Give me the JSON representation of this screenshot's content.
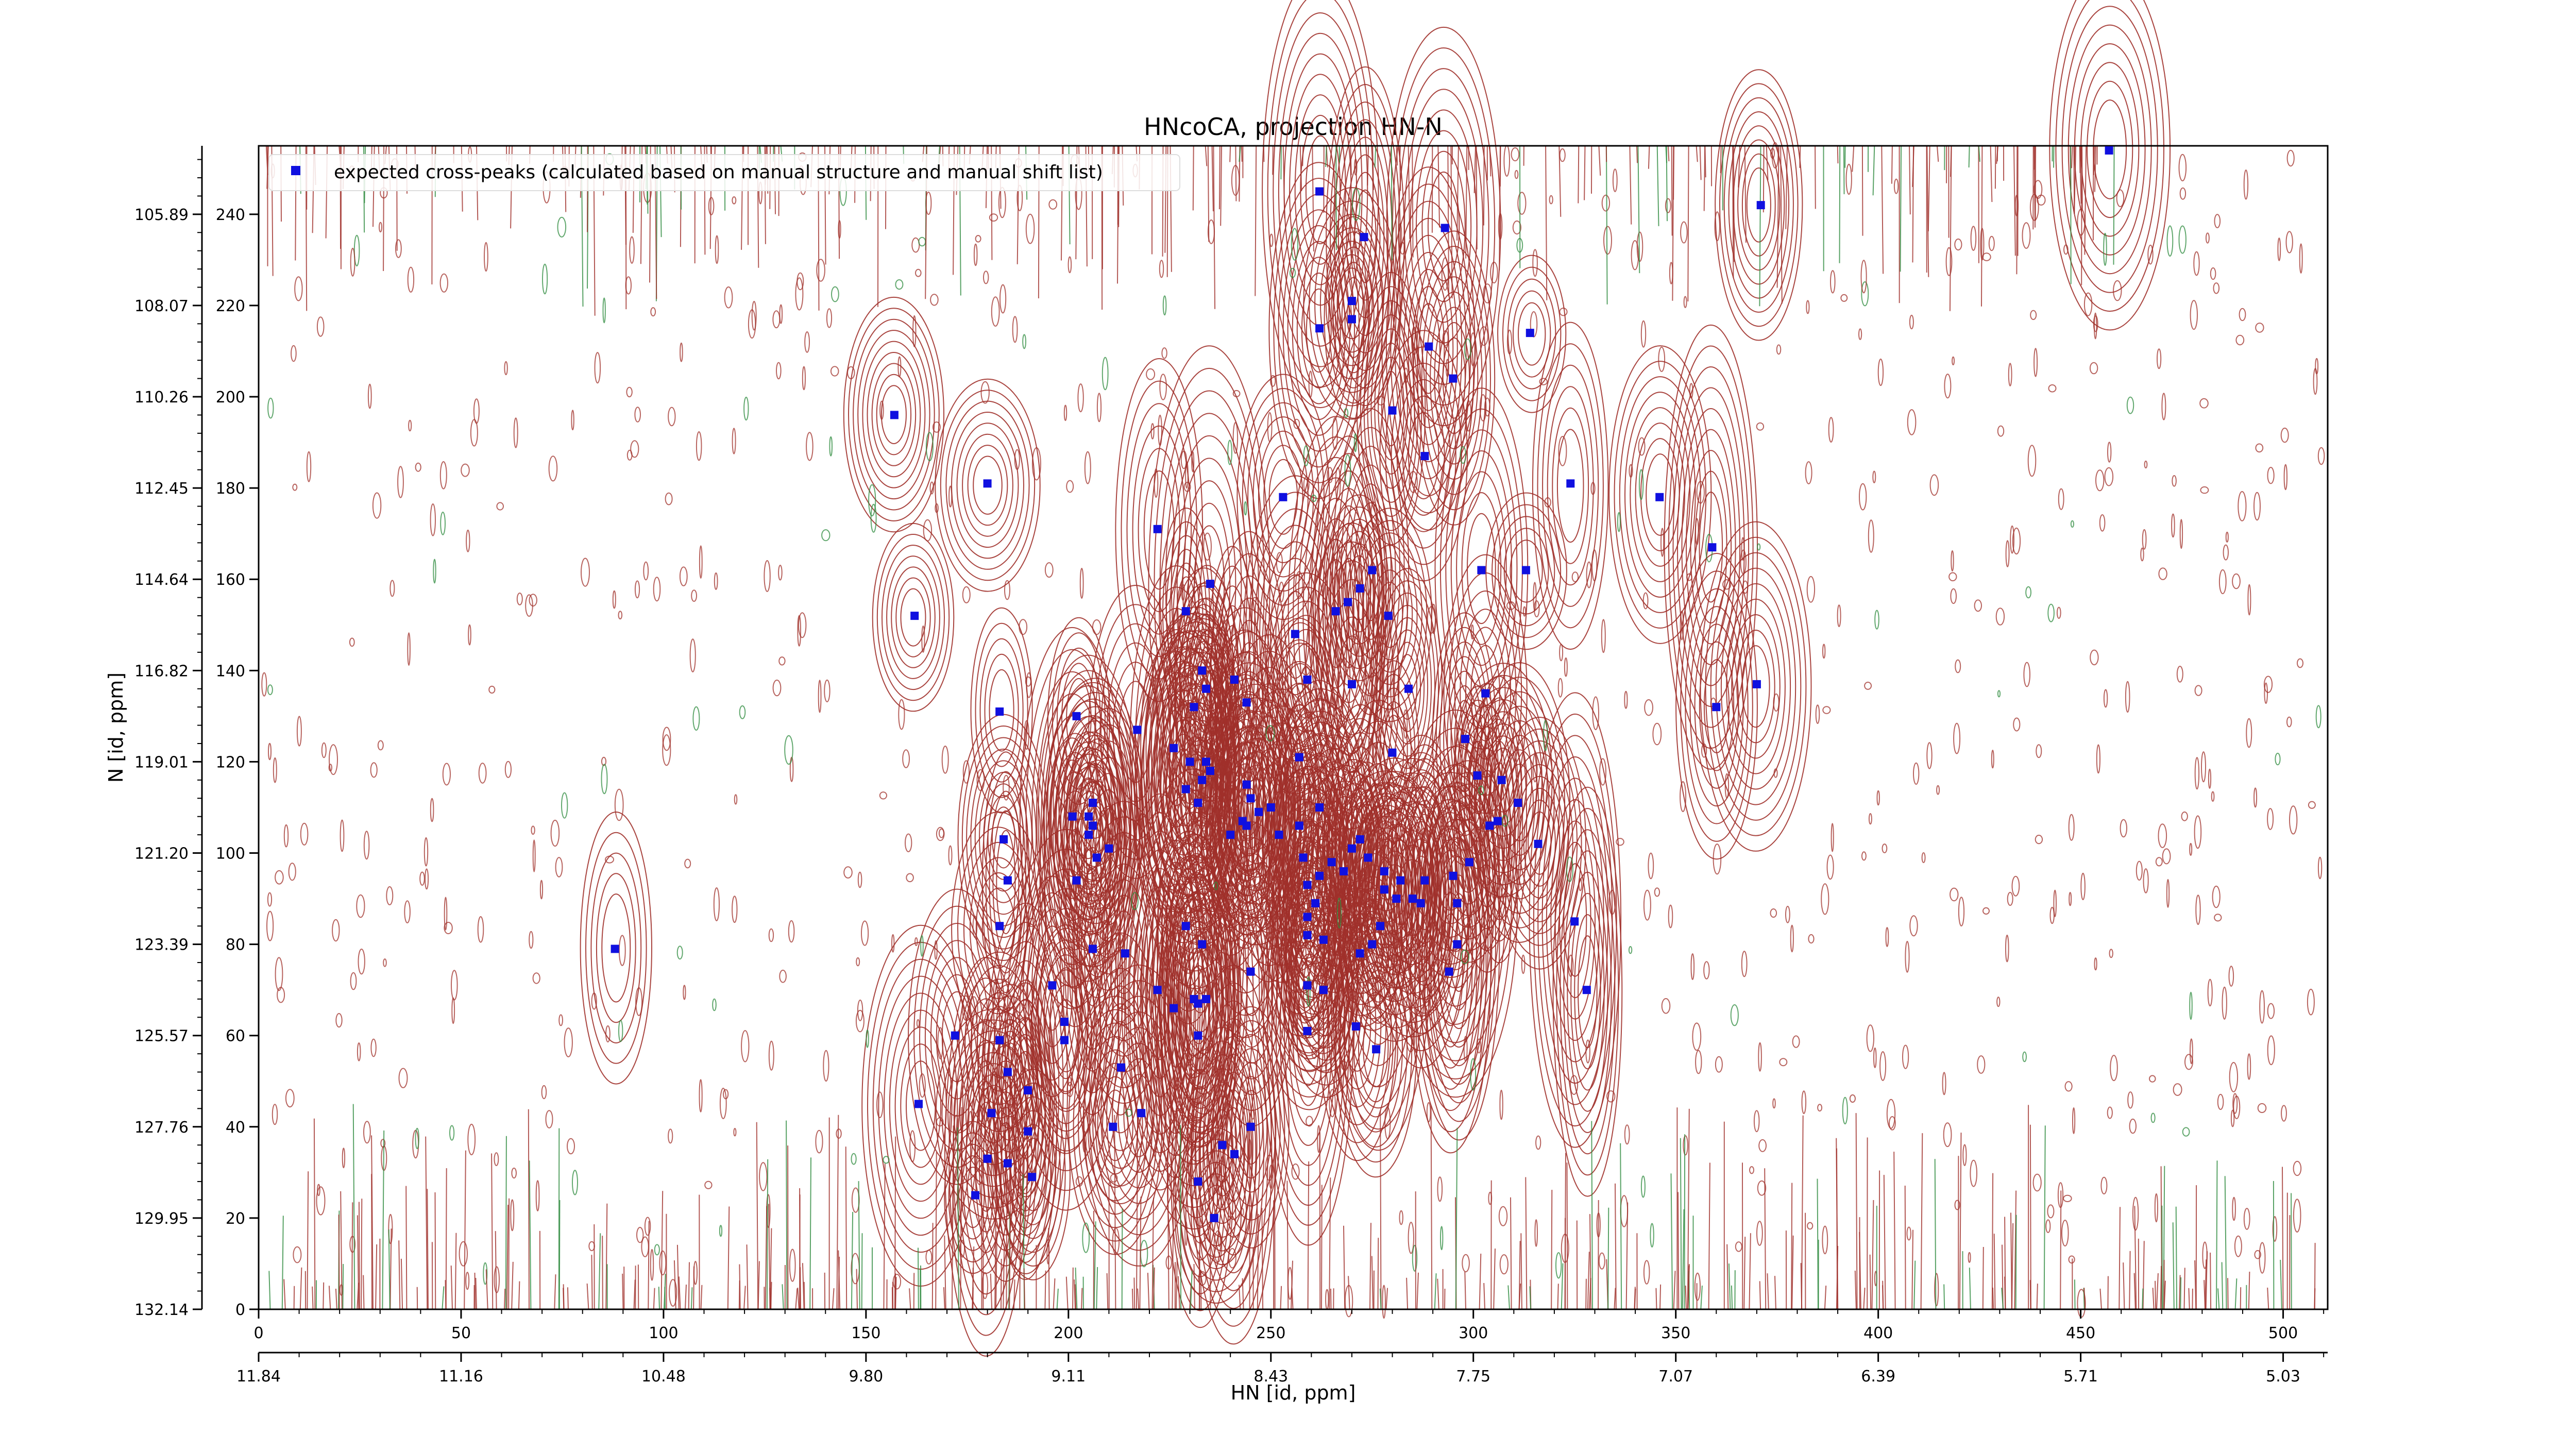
{
  "chart_data": {
    "type": "scatter",
    "title": "HNcoCA, projection HN-N",
    "xlabel": "HN [id, ppm]",
    "ylabel": "N [id, ppm]",
    "x_id_range": [
      0,
      511
    ],
    "y_id_range": [
      0,
      255
    ],
    "x_id_ticks": [
      "0",
      "50",
      "100",
      "150",
      "200",
      "250",
      "300",
      "350",
      "400",
      "450",
      "500"
    ],
    "x_id_tick_values": [
      0,
      50,
      100,
      150,
      200,
      250,
      300,
      350,
      400,
      450,
      500
    ],
    "x_ppm_ticks": [
      "11.84",
      "11.16",
      "10.48",
      "9.80",
      "9.11",
      "8.43",
      "7.75",
      "7.07",
      "6.39",
      "5.71",
      "5.03"
    ],
    "x_ppm_tick_values": [
      0,
      50,
      100,
      150,
      200,
      250,
      300,
      350,
      400,
      450,
      500
    ],
    "y_id_ticks": [
      "0",
      "20",
      "40",
      "60",
      "80",
      "100",
      "120",
      "140",
      "160",
      "180",
      "200",
      "220",
      "240"
    ],
    "y_id_tick_values": [
      0,
      20,
      40,
      60,
      80,
      100,
      120,
      140,
      160,
      180,
      200,
      220,
      240
    ],
    "y_ppm_ticks": [
      "132.14",
      "129.95",
      "127.76",
      "125.57",
      "123.39",
      "121.20",
      "119.01",
      "116.82",
      "114.64",
      "112.45",
      "110.26",
      "108.07",
      "105.89"
    ],
    "y_ppm_tick_values": [
      0,
      20,
      40,
      60,
      80,
      100,
      120,
      140,
      160,
      180,
      200,
      220,
      240
    ],
    "legend": {
      "label": "expected cross-peaks (calculated based on manual structure and manual shift list)",
      "position": "top-left"
    },
    "colors": {
      "positive_contours": "#a0302a",
      "negative_contours": "#2e8b3e",
      "peaks": "#1010e0"
    },
    "series": [
      {
        "name": "expected cross-peaks (calculated based on manual structure and manual shift list)",
        "marker": "square",
        "points": [
          [
            457,
            254
          ],
          [
            262,
            245
          ],
          [
            273,
            235
          ],
          [
            293,
            237
          ],
          [
            371,
            242
          ],
          [
            262,
            215
          ],
          [
            270,
            217
          ],
          [
            270,
            221
          ],
          [
            289,
            211
          ],
          [
            314,
            214
          ],
          [
            295,
            204
          ],
          [
            157,
            196
          ],
          [
            280,
            197
          ],
          [
            288,
            187
          ],
          [
            180,
            181
          ],
          [
            253,
            178
          ],
          [
            324,
            181
          ],
          [
            346,
            178
          ],
          [
            222,
            171
          ],
          [
            302,
            162
          ],
          [
            313,
            162
          ],
          [
            359,
            167
          ],
          [
            162,
            152
          ],
          [
            235,
            159
          ],
          [
            229,
            153
          ],
          [
            256,
            148
          ],
          [
            269,
            155
          ],
          [
            275,
            162
          ],
          [
            272,
            158
          ],
          [
            266,
            153
          ],
          [
            279,
            152
          ],
          [
            233,
            140
          ],
          [
            241,
            138
          ],
          [
            234,
            136
          ],
          [
            231,
            132
          ],
          [
            244,
            133
          ],
          [
            259,
            138
          ],
          [
            270,
            137
          ],
          [
            284,
            136
          ],
          [
            303,
            135
          ],
          [
            360,
            132
          ],
          [
            370,
            137
          ],
          [
            183,
            131
          ],
          [
            202,
            130
          ],
          [
            217,
            127
          ],
          [
            226,
            123
          ],
          [
            230,
            120
          ],
          [
            234,
            120
          ],
          [
            233,
            116
          ],
          [
            235,
            118
          ],
          [
            244,
            115
          ],
          [
            257,
            121
          ],
          [
            280,
            122
          ],
          [
            298,
            125
          ],
          [
            301,
            117
          ],
          [
            307,
            116
          ],
          [
            311,
            111
          ],
          [
            245,
            112
          ],
          [
            247,
            109
          ],
          [
            250,
            110
          ],
          [
            252,
            104
          ],
          [
            240,
            104
          ],
          [
            229,
            114
          ],
          [
            232,
            111
          ],
          [
            243,
            107
          ],
          [
            244,
            106
          ],
          [
            262,
            110
          ],
          [
            258,
            99
          ],
          [
            262,
            95
          ],
          [
            265,
            98
          ],
          [
            268,
            96
          ],
          [
            270,
            101
          ],
          [
            272,
            103
          ],
          [
            274,
            99
          ],
          [
            278,
            96
          ],
          [
            278,
            92
          ],
          [
            281,
            90
          ],
          [
            288,
            94
          ],
          [
            299,
            98
          ],
          [
            304,
            106
          ],
          [
            306,
            107
          ],
          [
            316,
            102
          ],
          [
            210,
            101
          ],
          [
            207,
            99
          ],
          [
            205,
            104
          ],
          [
            206,
            106
          ],
          [
            205,
            108
          ],
          [
            201,
            108
          ],
          [
            206,
            111
          ],
          [
            184,
            103
          ],
          [
            185,
            94
          ],
          [
            183,
            84
          ],
          [
            202,
            94
          ],
          [
            257,
            106
          ],
          [
            259,
            93
          ],
          [
            261,
            89
          ],
          [
            259,
            86
          ],
          [
            259,
            82
          ],
          [
            263,
            81
          ],
          [
            272,
            78
          ],
          [
            275,
            80
          ],
          [
            277,
            84
          ],
          [
            282,
            94
          ],
          [
            285,
            90
          ],
          [
            287,
            89
          ],
          [
            295,
            95
          ],
          [
            296,
            89
          ],
          [
            296,
            80
          ],
          [
            294,
            74
          ],
          [
            325,
            85
          ],
          [
            328,
            70
          ],
          [
            229,
            84
          ],
          [
            233,
            80
          ],
          [
            214,
            78
          ],
          [
            206,
            79
          ],
          [
            88,
            79
          ],
          [
            196,
            71
          ],
          [
            222,
            70
          ],
          [
            231,
            68
          ],
          [
            234,
            68
          ],
          [
            226,
            66
          ],
          [
            232,
            67
          ],
          [
            245,
            74
          ],
          [
            259,
            71
          ],
          [
            263,
            70
          ],
          [
            259,
            61
          ],
          [
            271,
            62
          ],
          [
            276,
            57
          ],
          [
            232,
            60
          ],
          [
            199,
            63
          ],
          [
            199,
            59
          ],
          [
            183,
            59
          ],
          [
            172,
            60
          ],
          [
            185,
            52
          ],
          [
            190,
            48
          ],
          [
            213,
            53
          ],
          [
            211,
            40
          ],
          [
            218,
            43
          ],
          [
            163,
            45
          ],
          [
            181,
            43
          ],
          [
            190,
            39
          ],
          [
            180,
            33
          ],
          [
            185,
            32
          ],
          [
            191,
            29
          ],
          [
            238,
            36
          ],
          [
            245,
            40
          ],
          [
            241,
            34
          ],
          [
            232,
            28
          ],
          [
            177,
            25
          ],
          [
            236,
            20
          ]
        ]
      }
    ]
  }
}
